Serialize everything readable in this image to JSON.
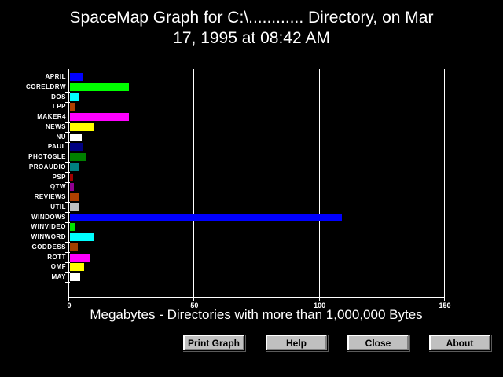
{
  "header": {
    "title_line1": "SpaceMap Graph for C:\\............ Directory, on Mar",
    "title_line2": "17, 1995 at 08:42 AM"
  },
  "chart_data": {
    "type": "bar",
    "orientation": "horizontal",
    "title": "SpaceMap Graph for C:\\............ Directory, on Mar 17, 1995 at 08:42 AM",
    "xlabel": "Megabytes - Directories with more than 1,000,000 Bytes",
    "ylabel": "",
    "xlim": [
      0,
      150
    ],
    "x_ticks": [
      0,
      50,
      100,
      150
    ],
    "grid": "vertical-white-on-black",
    "legend": "none",
    "categories": [
      "APRIL",
      "CORELDRW",
      "DOS",
      "LPP",
      "MAKER4",
      "NEWS",
      "NU",
      "PAUL",
      "PHOTOSLE",
      "PROAUDIO",
      "PSP",
      "QTW",
      "REVIEWS",
      "UTIL",
      "WINDOWS",
      "WINVIDEO",
      "WINWORD",
      "GODDESS",
      "ROTT",
      "OMF",
      "MAY"
    ],
    "values": [
      5.3,
      23.6,
      3.5,
      1.9,
      23.6,
      9.4,
      4.7,
      5.3,
      6.6,
      3.5,
      1.3,
      1.6,
      3.5,
      3.5,
      108.5,
      2.2,
      9.4,
      3.1,
      8.2,
      5.7,
      4.1
    ],
    "bar_colors": [
      "#0000ff",
      "#00ff00",
      "#00ffff",
      "#b04000",
      "#ff00ff",
      "#ffff00",
      "#ffffff",
      "#000080",
      "#008000",
      "#008080",
      "#a00000",
      "#900090",
      "#b04000",
      "#c0c0c0",
      "#0000ff",
      "#00e000",
      "#00ffff",
      "#a04000",
      "#ff00ff",
      "#ffff00",
      "#ffffff"
    ]
  },
  "colors": {
    "background": "#000000",
    "axis": "#ffffff",
    "text": "#ffffff",
    "button_face": "#c0c0c0"
  },
  "buttons": {
    "print_graph": "Print Graph",
    "help": "Help",
    "close": "Close",
    "about": "About"
  }
}
